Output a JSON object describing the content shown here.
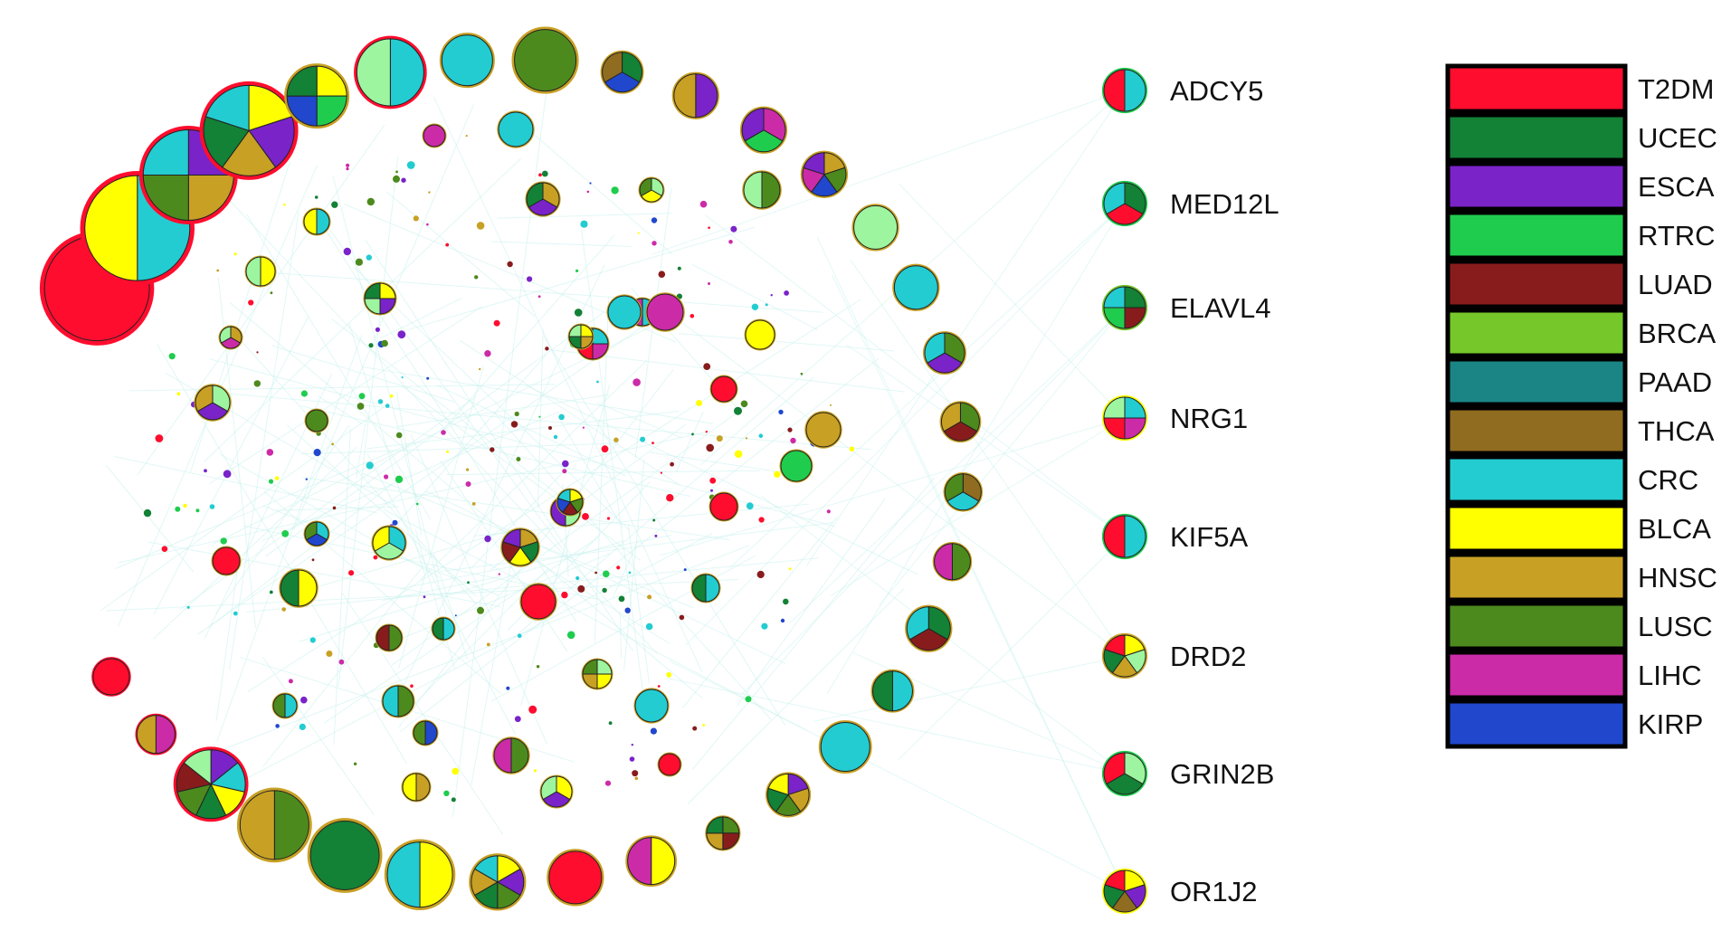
{
  "diseases": {
    "T2DM": "#ff0d2e",
    "UCEC": "#138136",
    "ESCA": "#7a23c9",
    "RTRC": "#20cc4e",
    "LUAD": "#881c1d",
    "BRCA": "#76c72a",
    "PAAD": "#1b8585",
    "THCA": "#8f6c1f",
    "CRC": "#23ccd1",
    "BLCA": "#ffff00",
    "HNSC": "#c8a024",
    "LUSC": "#4d8a1e",
    "LIHC": "#cc2ba8",
    "KIRP": "#2147cd",
    "LIGHT": "#9ef5a0"
  },
  "legend": [
    "T2DM",
    "UCEC",
    "ESCA",
    "RTRC",
    "LUAD",
    "BRCA",
    "PAAD",
    "THCA",
    "CRC",
    "BLCA",
    "HNSC",
    "LUSC",
    "LIHC",
    "KIRP"
  ],
  "genes": [
    {
      "name": "ADCY5",
      "segments": [
        "CRC",
        "T2DM"
      ],
      "ring": "RTRC"
    },
    {
      "name": "MED12L",
      "segments": [
        "UCEC",
        "T2DM",
        "CRC"
      ],
      "ring": "RTRC"
    },
    {
      "name": "ELAVL4",
      "segments": [
        "UCEC",
        "LUAD",
        "RTRC",
        "CRC"
      ],
      "ring": "BRCA"
    },
    {
      "name": "NRG1",
      "segments": [
        "CRC",
        "LIHC",
        "T2DM",
        "LIGHT"
      ],
      "ring": "BLCA"
    },
    {
      "name": "KIF5A",
      "segments": [
        "CRC",
        "T2DM"
      ],
      "ring": "RTRC"
    },
    {
      "name": "DRD2",
      "segments": [
        "BLCA",
        "LIGHT",
        "HNSC",
        "UCEC",
        "T2DM"
      ],
      "ring": "HNSC"
    },
    {
      "name": "GRIN2B",
      "segments": [
        "LIGHT",
        "UCEC",
        "T2DM"
      ],
      "ring": "RTRC"
    },
    {
      "name": "OR1J2",
      "segments": [
        "BLCA",
        "ESCA",
        "THCA",
        "UCEC",
        "T2DM"
      ],
      "ring": "BLCA"
    }
  ],
  "outer_ring": [
    {
      "segments": [
        "T2DM"
      ],
      "ring": "T2DM"
    },
    {
      "segments": [
        "CRC",
        "BLCA"
      ],
      "ring": "T2DM"
    },
    {
      "segments": [
        "ESCA",
        "HNSC",
        "LUSC",
        "CRC"
      ],
      "ring": "T2DM"
    },
    {
      "segments": [
        "BLCA",
        "ESCA",
        "HNSC",
        "UCEC",
        "CRC"
      ],
      "ring": "T2DM"
    },
    {
      "segments": [
        "BLCA",
        "RTRC",
        "KIRP",
        "UCEC"
      ],
      "ring": "HNSC"
    },
    {
      "segments": [
        "CRC",
        "LIGHT"
      ],
      "ring": "T2DM"
    },
    {
      "segments": [
        "CRC"
      ],
      "ring": "HNSC"
    },
    {
      "segments": [
        "LUSC"
      ],
      "ring": "HNSC"
    },
    {
      "segments": [
        "UCEC",
        "KIRP",
        "THCA"
      ],
      "ring": "HNSC"
    },
    {
      "segments": [
        "ESCA",
        "HNSC"
      ],
      "ring": "HNSC"
    },
    {
      "segments": [
        "LIHC",
        "RTRC",
        "ESCA"
      ],
      "ring": "HNSC"
    },
    {
      "segments": [
        "HNSC",
        "LUSC",
        "KIRP",
        "LIHC",
        "ESCA"
      ],
      "ring": "HNSC"
    },
    {
      "segments": [
        "LIGHT"
      ],
      "ring": "HNSC"
    },
    {
      "segments": [
        "CRC"
      ],
      "ring": "HNSC"
    },
    {
      "segments": [
        "LUSC",
        "ESCA",
        "CRC"
      ],
      "ring": "HNSC"
    },
    {
      "segments": [
        "LUSC",
        "LUAD",
        "HNSC"
      ],
      "ring": "HNSC"
    },
    {
      "segments": [
        "THCA",
        "CRC",
        "LUSC"
      ],
      "ring": "HNSC"
    },
    {
      "segments": [
        "LUSC",
        "LIHC"
      ],
      "ring": "HNSC"
    },
    {
      "segments": [
        "UCEC",
        "LUAD",
        "CRC"
      ],
      "ring": "HNSC"
    },
    {
      "segments": [
        "CRC",
        "UCEC"
      ],
      "ring": "HNSC"
    },
    {
      "segments": [
        "CRC"
      ],
      "ring": "HNSC"
    },
    {
      "segments": [
        "ESCA",
        "HNSC",
        "LUSC",
        "UCEC",
        "BLCA"
      ],
      "ring": "HNSC"
    },
    {
      "segments": [
        "LUSC",
        "LUAD",
        "HNSC",
        "UCEC"
      ],
      "ring": "HNSC"
    },
    {
      "segments": [
        "BLCA",
        "LIHC"
      ],
      "ring": "HNSC"
    },
    {
      "segments": [
        "T2DM"
      ],
      "ring": "HNSC"
    },
    {
      "segments": [
        "BLCA",
        "ESCA",
        "LUSC",
        "UCEC",
        "HNSC",
        "CRC"
      ],
      "ring": "HNSC"
    },
    {
      "segments": [
        "BLCA",
        "CRC"
      ],
      "ring": "HNSC"
    },
    {
      "segments": [
        "UCEC"
      ],
      "ring": "HNSC"
    },
    {
      "segments": [
        "LUSC",
        "HNSC"
      ],
      "ring": "HNSC"
    },
    {
      "segments": [
        "ESCA",
        "CRC",
        "BLCA",
        "UCEC",
        "LUSC",
        "LUAD",
        "LIGHT"
      ],
      "ring": "T2DM"
    },
    {
      "segments": [
        "LIHC",
        "HNSC"
      ],
      "ring": "T2DM"
    },
    {
      "segments": [
        "T2DM"
      ],
      "ring": "T2DM"
    }
  ],
  "inner_nodes": [
    {
      "segments": [
        "LIHC"
      ],
      "ring": "HNSC"
    },
    {
      "segments": [
        "CRC"
      ],
      "ring": "HNSC"
    },
    {
      "segments": [
        "BLCA",
        "ESCA",
        "LIGHT",
        "UCEC"
      ],
      "ring": "HNSC"
    },
    {
      "segments": [
        "T2DM"
      ],
      "ring": "HNSC"
    },
    {
      "segments": [
        "LIGHT",
        "BLCA",
        "LUSC"
      ],
      "ring": "HNSC"
    },
    {
      "segments": [
        "LUSC",
        "LIGHT"
      ],
      "ring": "HNSC"
    },
    {
      "segments": [
        "HNSC",
        "ESCA",
        "UCEC"
      ],
      "ring": "HNSC"
    },
    {
      "segments": [
        "BLCA",
        "LIGHT"
      ],
      "ring": "HNSC"
    },
    {
      "segments": [
        "CRC",
        "BLCA"
      ],
      "ring": "HNSC"
    },
    {
      "segments": [
        "HNSC",
        "LIHC",
        "LIGHT"
      ],
      "ring": "HNSC"
    },
    {
      "segments": [
        "LIGHT",
        "ESCA",
        "HNSC"
      ],
      "ring": "HNSC"
    },
    {
      "segments": [
        "CRC",
        "LIHC",
        "T2DM",
        "BLCA"
      ],
      "ring": "HNSC"
    },
    {
      "segments": [
        "CRC",
        "LIHC"
      ],
      "ring": "HNSC"
    },
    {
      "segments": [
        "BLCA",
        "HNSC",
        "UCEC",
        "LIGHT"
      ],
      "ring": "HNSC"
    },
    {
      "segments": [
        "LIHC"
      ],
      "ring": "HNSC"
    },
    {
      "segments": [
        "CRC"
      ],
      "ring": "HNSC"
    },
    {
      "segments": [
        "BLCA"
      ],
      "ring": "HNSC"
    },
    {
      "segments": [
        "T2DM"
      ],
      "ring": "HNSC"
    },
    {
      "segments": [
        "LUSC"
      ],
      "ring": "HNSC"
    },
    {
      "segments": [
        "HNSC"
      ],
      "ring": "HNSC"
    },
    {
      "segments": [
        "RTRC"
      ],
      "ring": "HNSC"
    },
    {
      "segments": [
        "T2DM"
      ],
      "ring": "HNSC"
    },
    {
      "segments": [
        "CRC",
        "KIRP",
        "LUSC"
      ],
      "ring": "HNSC"
    },
    {
      "segments": [
        "HNSC",
        "UCEC",
        "BLCA",
        "LUAD",
        "ESCA"
      ],
      "ring": "HNSC"
    },
    {
      "segments": [
        "CRC",
        "LIGHT",
        "BLCA"
      ],
      "ring": "HNSC"
    },
    {
      "segments": [
        "LIGHT",
        "ESCA"
      ],
      "ring": "HNSC"
    },
    {
      "segments": [
        "LUSC",
        "LUAD"
      ],
      "ring": "HNSC"
    },
    {
      "segments": [
        "CRC",
        "UCEC"
      ],
      "ring": "HNSC"
    },
    {
      "segments": [
        "T2DM"
      ],
      "ring": "HNSC"
    },
    {
      "segments": [
        "LUSC",
        "CRC"
      ],
      "ring": "HNSC"
    },
    {
      "segments": [
        "CRC",
        "UCEC"
      ],
      "ring": "HNSC"
    },
    {
      "segments": [
        "KIRP",
        "LUSC"
      ],
      "ring": "HNSC"
    },
    {
      "segments": [
        "BLCA",
        "UCEC"
      ],
      "ring": "HNSC"
    },
    {
      "segments": [
        "CRC"
      ],
      "ring": "HNSC"
    },
    {
      "segments": [
        "LIGHT",
        "BLCA",
        "HNSC",
        "LUSC"
      ],
      "ring": "HNSC"
    },
    {
      "segments": [
        "BLCA",
        "LUSC",
        "LUAD",
        "KIRP",
        "CRC"
      ],
      "ring": "HNSC"
    },
    {
      "segments": [
        "T2DM"
      ],
      "ring": "HNSC"
    },
    {
      "segments": [
        "LUSC",
        "LIHC"
      ],
      "ring": "HNSC"
    },
    {
      "segments": [
        "BLCA",
        "ESCA",
        "LIGHT"
      ],
      "ring": "HNSC"
    },
    {
      "segments": [
        "HNSC",
        "BLCA"
      ],
      "ring": "HNSC"
    },
    {
      "segments": [
        "CRC",
        "LUSC"
      ],
      "ring": "HNSC"
    }
  ]
}
